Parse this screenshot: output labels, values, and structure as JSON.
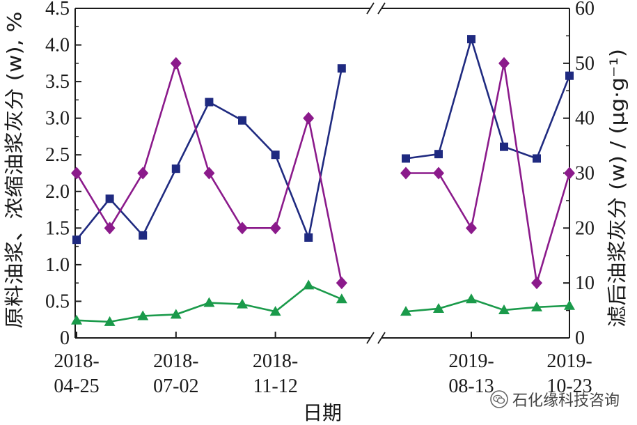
{
  "watermark": {
    "text": "石化缘科技咨询",
    "icon": "wechat-icon"
  },
  "chart_data": {
    "type": "line",
    "xlabel": "日期",
    "ylabel_left": "原料油浆、浓缩油浆灰分 (w), %",
    "ylabel_right": "滤后油浆灰分 (w) / (μg·g⁻¹)",
    "ylim_left": [
      0,
      4.5
    ],
    "yticks_left": [
      "0",
      "0.5",
      "1.0",
      "1.5",
      "2.0",
      "2.5",
      "3.0",
      "3.5",
      "4.0",
      "4.5"
    ],
    "ylim_right": [
      0,
      60
    ],
    "yticks_right": [
      "0",
      "10",
      "20",
      "30",
      "40",
      "50",
      "60"
    ],
    "axis_break": "between 2018 and 2019 segments",
    "xtick_labels": [
      {
        "line1": "2018-",
        "line2": "04-25"
      },
      {
        "line1": "2018-",
        "line2": "07-02"
      },
      {
        "line1": "2018-",
        "line2": "11-12"
      },
      {
        "line1": "2019-",
        "line2": "08-13"
      },
      {
        "line1": "2019-",
        "line2": "10-23"
      }
    ],
    "grid": false,
    "legend": "none",
    "segments": [
      {
        "points": 9,
        "series": [
          {
            "axis": "left",
            "color": "#1f2a80",
            "marker": "square",
            "values": [
              1.34,
              1.9,
              1.4,
              2.31,
              3.22,
              2.97,
              2.5,
              1.37,
              3.68
            ]
          },
          {
            "axis": "right",
            "color": "#8b1a8b",
            "marker": "diamond",
            "values": [
              30,
              20,
              30,
              50,
              30,
              20,
              20,
              40,
              10
            ]
          },
          {
            "axis": "left",
            "color": "#1a9a4a",
            "marker": "triangle",
            "values": [
              0.24,
              0.22,
              0.3,
              0.32,
              0.48,
              0.46,
              0.36,
              0.72,
              0.53
            ]
          }
        ]
      },
      {
        "points": 6,
        "series": [
          {
            "axis": "left",
            "color": "#1f2a80",
            "marker": "square",
            "values": [
              2.45,
              2.51,
              4.08,
              2.61,
              2.45,
              3.58
            ]
          },
          {
            "axis": "right",
            "color": "#8b1a8b",
            "marker": "diamond",
            "values": [
              30,
              30,
              20,
              50,
              10,
              30
            ]
          },
          {
            "axis": "left",
            "color": "#1a9a4a",
            "marker": "triangle",
            "values": [
              0.36,
              0.4,
              0.53,
              0.38,
              0.42,
              0.44
            ]
          }
        ]
      }
    ]
  }
}
